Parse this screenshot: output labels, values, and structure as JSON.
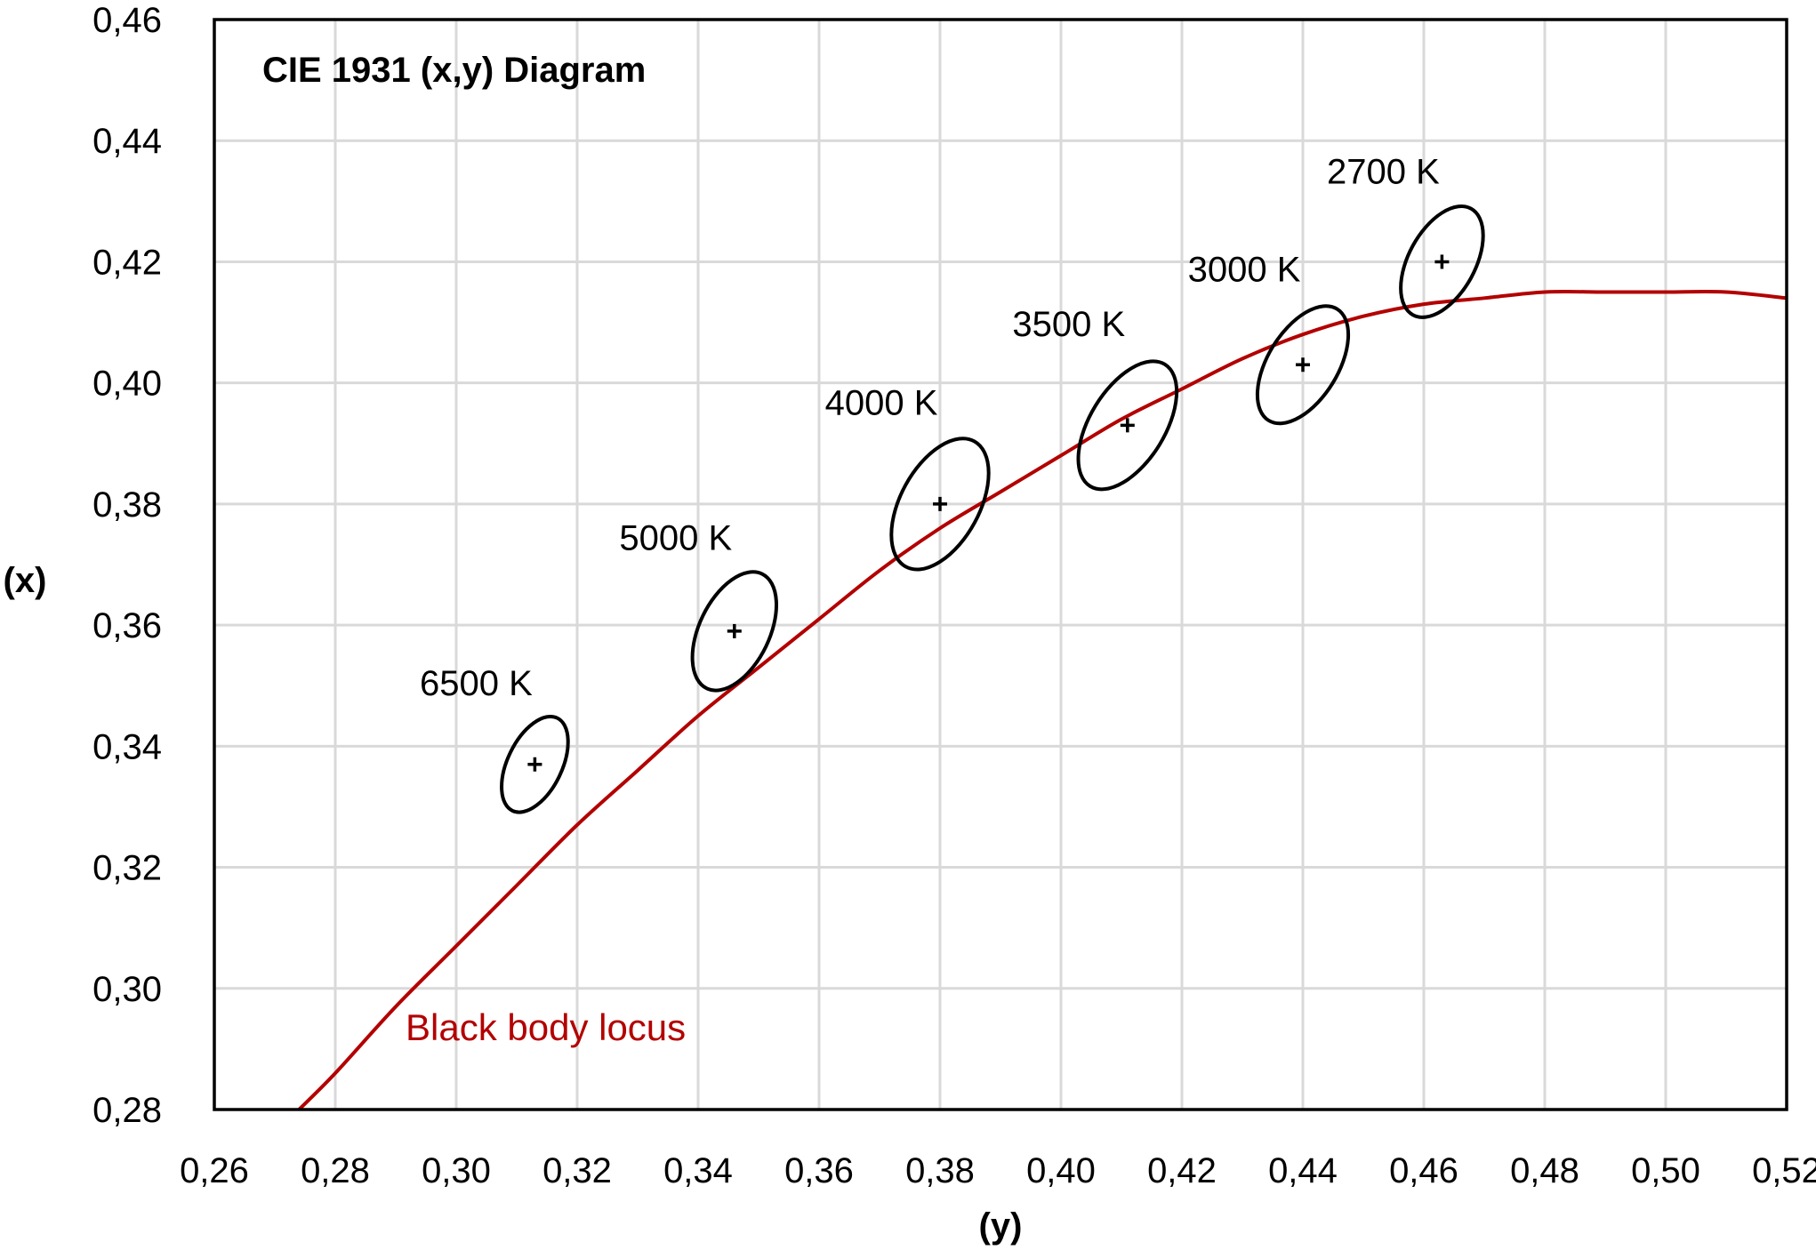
{
  "chart_data": {
    "type": "scatter",
    "title": "CIE 1931 (x,y) Diagram",
    "xlabel": "(y)",
    "ylabel": "(x)",
    "xlim": [
      0.26,
      0.52
    ],
    "ylim": [
      0.28,
      0.46
    ],
    "xticks": [
      "0,26",
      "0,28",
      "0,30",
      "0,32",
      "0,34",
      "0,36",
      "0,38",
      "0,40",
      "0,42",
      "0,44",
      "0,46",
      "0,48",
      "0,50",
      "0,52"
    ],
    "yticks": [
      "0,28",
      "0,30",
      "0,32",
      "0,34",
      "0,36",
      "0,38",
      "0,40",
      "0,42",
      "0,44",
      "0,46"
    ],
    "grid": true,
    "colors": {
      "locus": "#b30000",
      "ellipse": "#000000",
      "grid": "#d9d9d9"
    },
    "points": [
      {
        "label": "6500 K",
        "x": 0.313,
        "y": 0.337,
        "ellipse": {
          "rx": 0.0045,
          "ry": 0.0085,
          "angle": 0.45
        }
      },
      {
        "label": "5000 K",
        "x": 0.346,
        "y": 0.359,
        "ellipse": {
          "rx": 0.0058,
          "ry": 0.0105,
          "angle": 0.45
        }
      },
      {
        "label": "4000 K",
        "x": 0.38,
        "y": 0.38,
        "ellipse": {
          "rx": 0.0065,
          "ry": 0.0118,
          "angle": 0.5
        }
      },
      {
        "label": "3500 K",
        "x": 0.411,
        "y": 0.393,
        "ellipse": {
          "rx": 0.0062,
          "ry": 0.0118,
          "angle": 0.55
        }
      },
      {
        "label": "3000 K",
        "x": 0.44,
        "y": 0.403,
        "ellipse": {
          "rx": 0.0058,
          "ry": 0.0108,
          "angle": 0.55
        }
      },
      {
        "label": "2700 K",
        "x": 0.463,
        "y": 0.42,
        "ellipse": {
          "rx": 0.0055,
          "ry": 0.01,
          "angle": 0.5
        }
      }
    ],
    "locus": {
      "label": "Black body locus",
      "x": [
        0.274,
        0.28,
        0.29,
        0.3,
        0.31,
        0.32,
        0.33,
        0.34,
        0.35,
        0.36,
        0.37,
        0.38,
        0.39,
        0.4,
        0.41,
        0.42,
        0.43,
        0.44,
        0.45,
        0.46,
        0.47,
        0.48,
        0.49,
        0.5,
        0.51,
        0.52
      ],
      "y": [
        0.28,
        0.286,
        0.297,
        0.307,
        0.317,
        0.327,
        0.336,
        0.345,
        0.353,
        0.361,
        0.369,
        0.376,
        0.382,
        0.388,
        0.394,
        0.399,
        0.404,
        0.408,
        0.411,
        0.413,
        0.414,
        0.415,
        0.415,
        0.415,
        0.415,
        0.414
      ]
    }
  }
}
